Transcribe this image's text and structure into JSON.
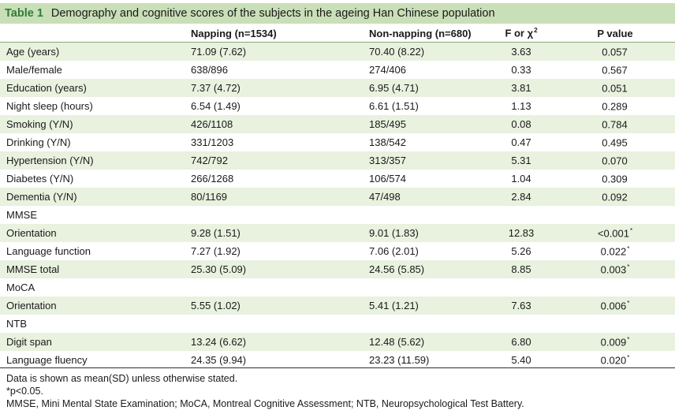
{
  "caption": {
    "label": "Table 1",
    "text": "Demography and cognitive scores of the subjects in the ageing Han Chinese population"
  },
  "headers": {
    "col1": "",
    "col2": "Napping (n=1534)",
    "col3": "Non-napping (n=680)",
    "col4": "F or χ",
    "col4_sup": "2",
    "col5": "P value"
  },
  "rows": [
    {
      "label": "Age (years)",
      "napping": "71.09 (7.62)",
      "non_napping": "70.40 (8.22)",
      "f": "3.63",
      "p": "0.057",
      "sig": ""
    },
    {
      "label": "Male/female",
      "napping": "638/896",
      "non_napping": "274/406",
      "f": "0.33",
      "p": "0.567",
      "sig": ""
    },
    {
      "label": "Education (years)",
      "napping": "7.37 (4.72)",
      "non_napping": "6.95 (4.71)",
      "f": "3.81",
      "p": "0.051",
      "sig": ""
    },
    {
      "label": "Night sleep (hours)",
      "napping": "6.54 (1.49)",
      "non_napping": "6.61 (1.51)",
      "f": "1.13",
      "p": "0.289",
      "sig": ""
    },
    {
      "label": "Smoking (Y/N)",
      "napping": "426/1108",
      "non_napping": "185/495",
      "f": "0.08",
      "p": "0.784",
      "sig": ""
    },
    {
      "label": "Drinking (Y/N)",
      "napping": "331/1203",
      "non_napping": "138/542",
      "f": "0.47",
      "p": "0.495",
      "sig": ""
    },
    {
      "label": "Hypertension (Y/N)",
      "napping": "742/792",
      "non_napping": "313/357",
      "f": "5.31",
      "p": "0.070",
      "sig": ""
    },
    {
      "label": "Diabetes (Y/N)",
      "napping": "266/1268",
      "non_napping": "106/574",
      "f": "1.04",
      "p": "0.309",
      "sig": ""
    },
    {
      "label": "Dementia (Y/N)",
      "napping": "80/1169",
      "non_napping": "47/498",
      "f": "2.84",
      "p": "0.092",
      "sig": ""
    },
    {
      "label": "MMSE",
      "napping": "",
      "non_napping": "",
      "f": "",
      "p": "",
      "sig": ""
    },
    {
      "label": "Orientation",
      "napping": "9.28 (1.51)",
      "non_napping": "9.01 (1.83)",
      "f": "12.83",
      "p": "<0.001",
      "sig": "*"
    },
    {
      "label": "Language function",
      "napping": "7.27 (1.92)",
      "non_napping": "7.06 (2.01)",
      "f": "5.26",
      "p": "0.022",
      "sig": "*"
    },
    {
      "label": "MMSE total",
      "napping": "25.30 (5.09)",
      "non_napping": "24.56 (5.85)",
      "f": "8.85",
      "p": "0.003",
      "sig": "*"
    },
    {
      "label": "MoCA",
      "napping": "",
      "non_napping": "",
      "f": "",
      "p": "",
      "sig": ""
    },
    {
      "label": "Orientation",
      "napping": "5.55 (1.02)",
      "non_napping": "5.41 (1.21)",
      "f": "7.63",
      "p": "0.006",
      "sig": "*"
    },
    {
      "label": "NTB",
      "napping": "",
      "non_napping": "",
      "f": "",
      "p": "",
      "sig": ""
    },
    {
      "label": "Digit span",
      "napping": "13.24 (6.62)",
      "non_napping": "12.48 (5.62)",
      "f": "6.80",
      "p": "0.009",
      "sig": "*"
    },
    {
      "label": "Language fluency",
      "napping": "24.35 (9.94)",
      "non_napping": "23.23 (11.59)",
      "f": "5.40",
      "p": "0.020",
      "sig": "*"
    }
  ],
  "notes": [
    "Data is shown as mean(SD) unless otherwise stated.",
    "*p<0.05.",
    "MMSE, Mini Mental State Examination; MoCA, Montreal Cognitive Assessment; NTB, Neuropsychological Test Battery."
  ],
  "colors": {
    "caption_bg": "#c9dfb8",
    "caption_label": "#2f7d36",
    "row_shade": "#e9f1df"
  }
}
